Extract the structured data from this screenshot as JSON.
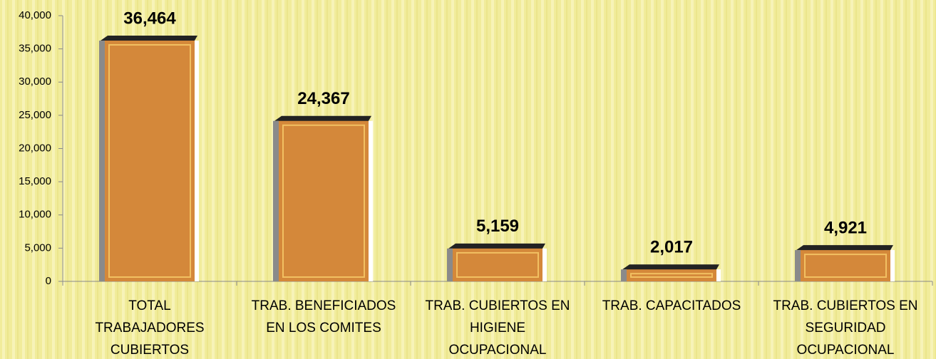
{
  "chart_data": {
    "type": "bar",
    "categories": [
      "TOTAL\nTRABAJADORES\nCUBIERTOS",
      "TRAB. BENEFICIADOS\nEN LOS COMITES",
      "TRAB. CUBIERTOS EN\nHIGIENE\nOCUPACIONAL",
      "TRAB. CAPACITADOS",
      "TRAB. CUBIERTOS EN\nSEGURIDAD\nOCUPACIONAL"
    ],
    "values": [
      36464,
      24367,
      5159,
      2017,
      4921
    ],
    "value_labels": [
      "36,464",
      "24,367",
      "5,159",
      "2,017",
      "4,921"
    ],
    "color": "#d4883a",
    "ylim": [
      0,
      40000
    ],
    "yticks": [
      0,
      {
        "value": 5000,
        "label": "5,000"
      },
      {
        "value": 10000,
        "label": "10,000"
      },
      {
        "value": 15000,
        "label": "15,000"
      },
      {
        "value": 20000,
        "label": "20,000"
      },
      {
        "value": 25000,
        "label": "25,000"
      },
      {
        "value": 30000,
        "label": "30,000"
      },
      {
        "value": 35000,
        "label": "35,000"
      },
      {
        "value": 40000,
        "label": "40,000"
      }
    ]
  }
}
